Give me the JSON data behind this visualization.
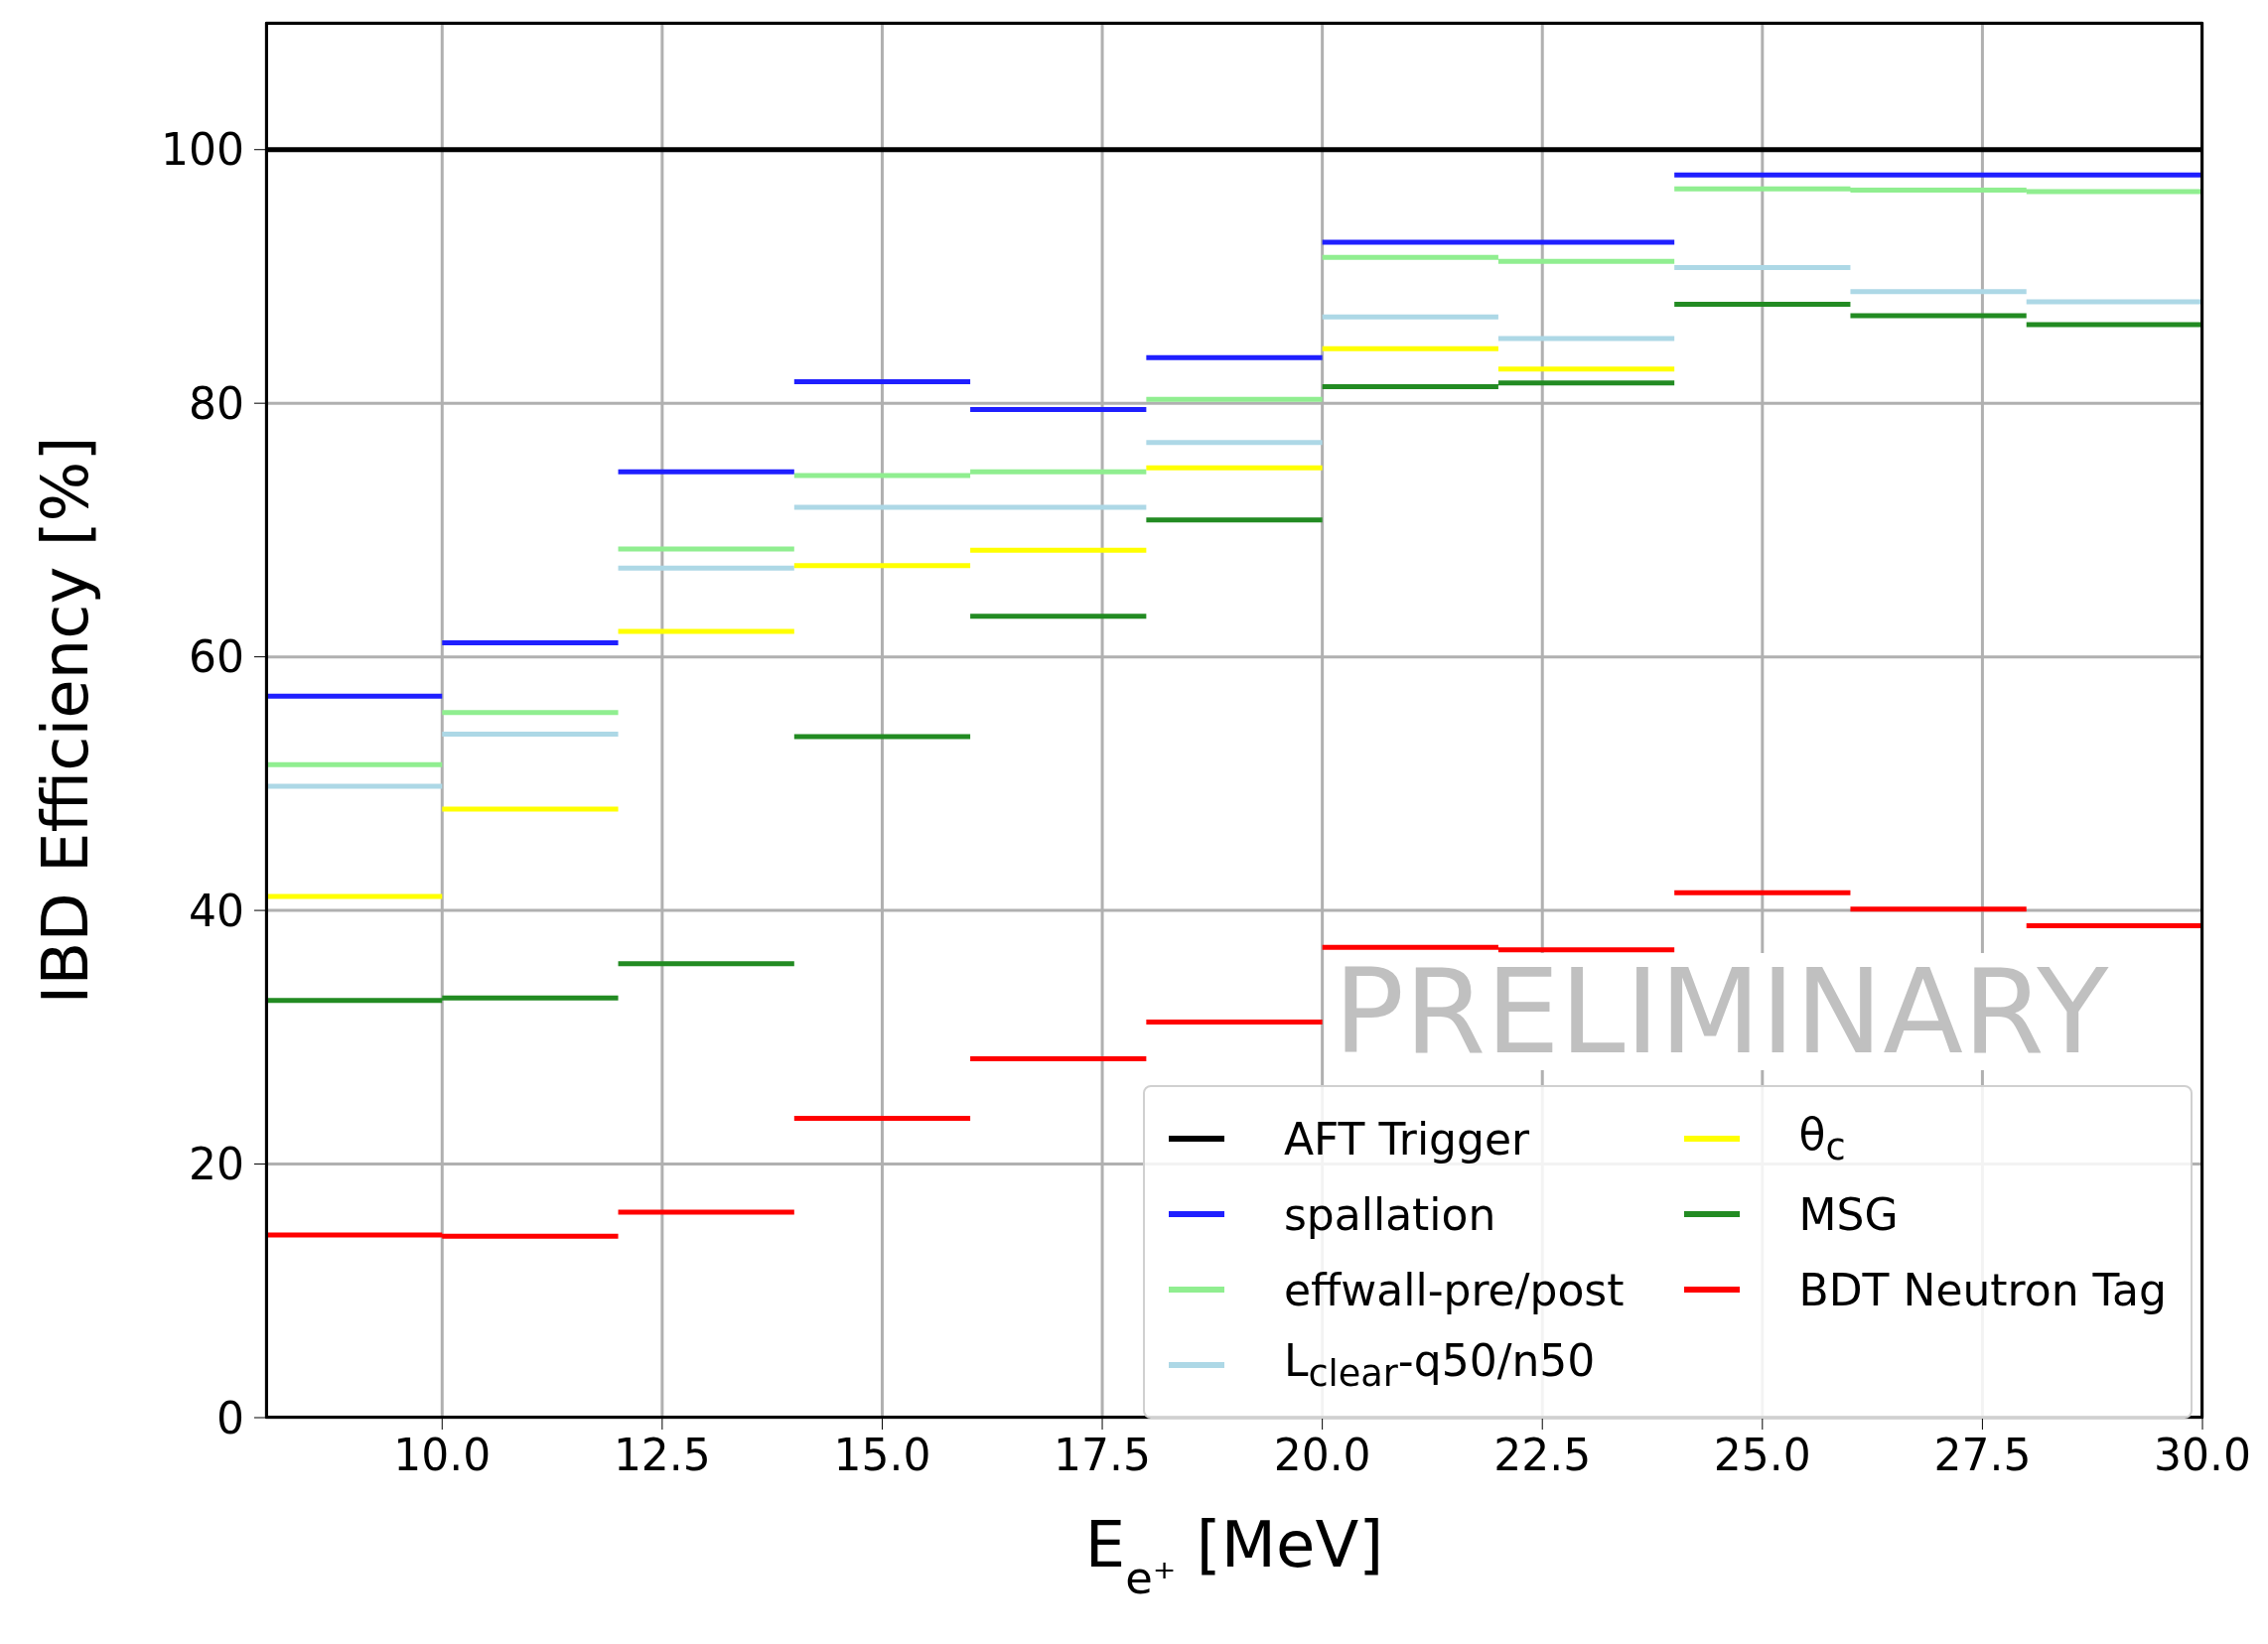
{
  "chart_data": {
    "type": "step",
    "xlabel": "E$_{e⁺}$ [MeV]",
    "ylabel": "IBD Efficiency [%]",
    "x": [
      8,
      10,
      12,
      14,
      16,
      18,
      20,
      22,
      24,
      26,
      28,
      30
    ],
    "xlim": [
      8,
      30
    ],
    "ylim": [
      0,
      110
    ],
    "xticks": [
      {
        "value": 10,
        "label": "10.0"
      },
      {
        "value": 12.5,
        "label": "12.5"
      },
      {
        "value": 15,
        "label": "15.0"
      },
      {
        "value": 17.5,
        "label": "17.5"
      },
      {
        "value": 20,
        "label": "20.0"
      },
      {
        "value": 22.5,
        "label": "22.5"
      },
      {
        "value": 25,
        "label": "25.0"
      },
      {
        "value": 27.5,
        "label": "27.5"
      },
      {
        "value": 30,
        "label": "30.0"
      }
    ],
    "yticks": [
      0,
      20,
      40,
      60,
      80,
      100
    ],
    "grid": true,
    "legend": "bottom right",
    "line_style": "solid",
    "marker": "none",
    "annotations": [
      "PRELIMINARY"
    ],
    "series": [
      {
        "name": "AFT Trigger",
        "color": "#000000",
        "values": [
          100,
          100,
          100,
          100,
          100,
          100,
          100,
          100,
          100,
          100,
          100,
          100
        ]
      },
      {
        "name": "spallation",
        "color": "#1f1fff",
        "values": [
          56.9,
          61.1,
          74.6,
          81.7,
          79.5,
          83.6,
          92.7,
          92.7,
          98,
          98,
          98,
          98
        ]
      },
      {
        "name": "effwall-pre/post",
        "color": "#90ee90",
        "values": [
          51.5,
          55.6,
          68.5,
          74.3,
          74.6,
          80.3,
          91.5,
          91.2,
          96.9,
          96.8,
          96.7,
          96.7
        ]
      },
      {
        "name": "L$_{clear}$-q50/n50",
        "color": "#add8e6",
        "values": [
          49.8,
          53.9,
          67.0,
          71.8,
          71.8,
          76.9,
          86.8,
          85.1,
          90.7,
          88.8,
          88.0,
          88.0
        ]
      },
      {
        "name": "θ$_{c}$",
        "color": "#ffff00",
        "x": [
          8,
          10,
          12,
          14,
          16,
          18,
          20,
          22,
          24
        ],
        "values": [
          41.1,
          48.0,
          62.0,
          67.2,
          68.4,
          74.9,
          84.3,
          82.7,
          82.7
        ]
      },
      {
        "name": "MSG",
        "color": "#228b22",
        "values": [
          32.9,
          33.1,
          35.8,
          53.7,
          63.2,
          70.8,
          81.3,
          81.6,
          87.8,
          86.9,
          86.2,
          86.2
        ]
      },
      {
        "name": "BDT Neutron Tag",
        "color": "#ff0000",
        "values": [
          14.4,
          14.3,
          16.2,
          23.6,
          28.3,
          31.2,
          37.1,
          36.9,
          41.4,
          40.1,
          38.8,
          38.8
        ]
      }
    ]
  }
}
